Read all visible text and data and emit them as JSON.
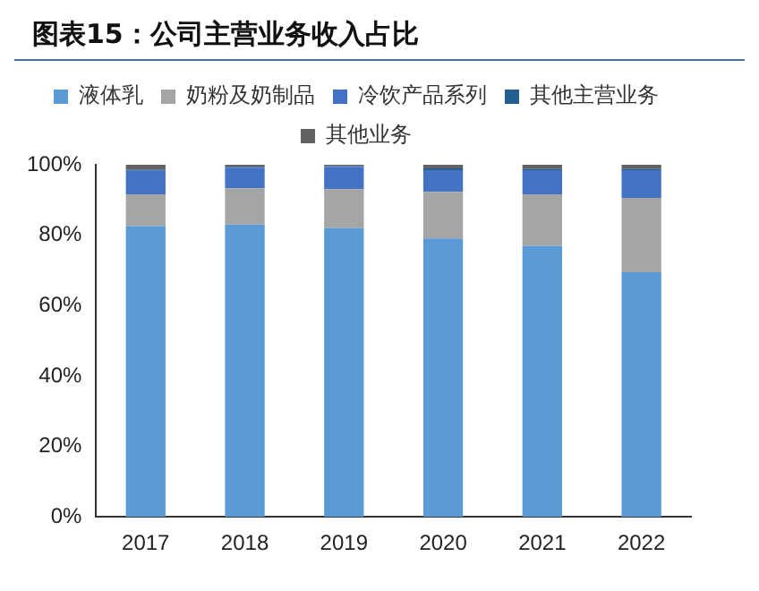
{
  "chart_data": {
    "type": "bar",
    "title": "图表15：公司主营业务收入占比",
    "stacked": true,
    "legend": "top",
    "grid": false,
    "categories": [
      "2017",
      "2018",
      "2019",
      "2020",
      "2021",
      "2022"
    ],
    "series": [
      {
        "name": "液体乳",
        "color": "#5b9bd5",
        "values": [
          82.6,
          83.0,
          82.0,
          79.1,
          77.0,
          69.5
        ]
      },
      {
        "name": "奶粉及奶制品",
        "color": "#a5a5a5",
        "values": [
          9.0,
          10.3,
          11.1,
          13.2,
          14.6,
          21.1
        ]
      },
      {
        "name": "冷饮产品系列",
        "color": "#4472c4",
        "values": [
          6.7,
          5.9,
          6.3,
          6.2,
          6.9,
          7.9
        ]
      },
      {
        "name": "其他主营业务",
        "color": "#255e91",
        "values": [
          0.3,
          0.2,
          0.2,
          0.5,
          0.3,
          0.3
        ]
      },
      {
        "name": "其他业务",
        "color": "#636363",
        "values": [
          1.4,
          0.6,
          0.4,
          1.0,
          1.2,
          1.2
        ]
      }
    ],
    "ylim": [
      0,
      100
    ],
    "yticks": [
      {
        "value": 0,
        "label": "0%"
      },
      {
        "value": 20,
        "label": "20%"
      },
      {
        "value": 40,
        "label": "40%"
      },
      {
        "value": 60,
        "label": "60%"
      },
      {
        "value": 80,
        "label": "80%"
      },
      {
        "value": 100,
        "label": "100%"
      }
    ]
  }
}
